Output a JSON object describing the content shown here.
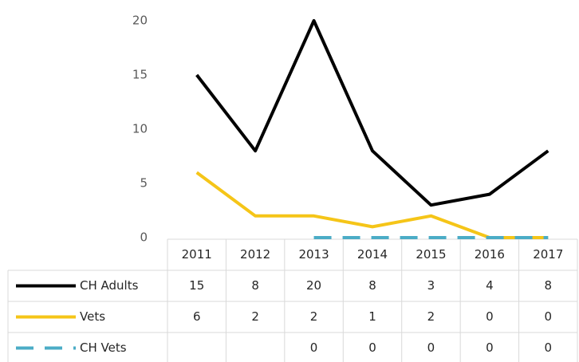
{
  "chart_data": {
    "type": "line",
    "categories": [
      "2011",
      "2012",
      "2013",
      "2014",
      "2015",
      "2016",
      "2017"
    ],
    "series": [
      {
        "name": "CH Adults",
        "color": "#000000",
        "dash": false,
        "values": [
          15,
          8,
          20,
          8,
          3,
          4,
          8
        ]
      },
      {
        "name": "Vets",
        "color": "#f5c518",
        "dash": false,
        "values": [
          6,
          2,
          2,
          1,
          2,
          0,
          0
        ]
      },
      {
        "name": "CH Vets",
        "color": "#4bacc6",
        "dash": true,
        "values": [
          null,
          null,
          0,
          0,
          0,
          0,
          0
        ]
      }
    ],
    "ylim": [
      0,
      20
    ],
    "yticks": [
      0,
      5,
      10,
      15,
      20
    ],
    "grid": false,
    "data_table": true
  }
}
